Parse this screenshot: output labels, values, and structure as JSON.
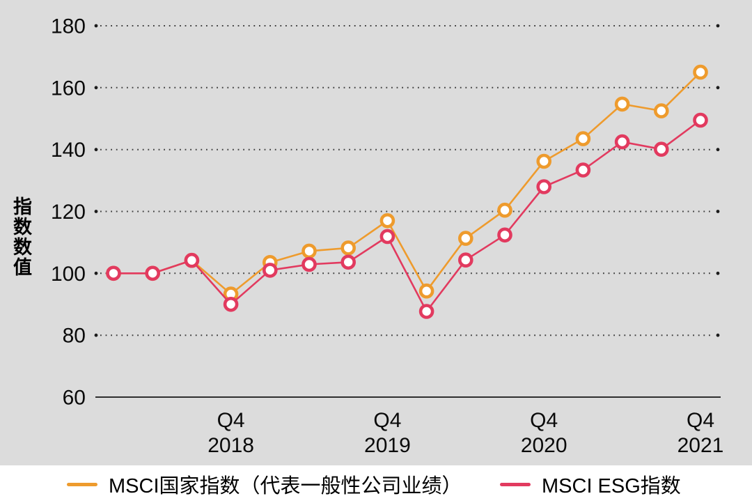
{
  "chart_data": {
    "type": "line",
    "title": "",
    "ylabel": "指数数值",
    "ylim": [
      60,
      180
    ],
    "yticks": [
      180,
      160,
      140,
      120,
      100,
      80,
      60
    ],
    "grid": "dotted horizontal gridlines, solid baseline at 60",
    "legend_position": "bottom",
    "plot_background": "#dcdcdc",
    "x_description": "16 quarterly observations, Q1 2018 through Q4 2021",
    "xticks": [
      {
        "index": 3,
        "line1": "Q4",
        "line2": "2018"
      },
      {
        "index": 7,
        "line1": "Q4",
        "line2": "2019"
      },
      {
        "index": 11,
        "line1": "Q4",
        "line2": "2020"
      },
      {
        "index": 15,
        "line1": "Q4",
        "line2": "2021"
      }
    ],
    "series": [
      {
        "name": "MSCI国家指数（代表一般性公司业绩）",
        "color": "#EE9B2D",
        "values": [
          100,
          100,
          104.2,
          93.3,
          103.5,
          107.2,
          108.2,
          117,
          94.3,
          111.3,
          120.4,
          136.2,
          143.5,
          154.7,
          152.5,
          165
        ]
      },
      {
        "name": "MSCI ESG指数",
        "color": "#E23A5F",
        "values": [
          100,
          100,
          104.2,
          90,
          101,
          102.9,
          103.6,
          111.9,
          87.7,
          104.3,
          112.4,
          128,
          133.4,
          142.5,
          140.1,
          149.5
        ]
      }
    ]
  }
}
